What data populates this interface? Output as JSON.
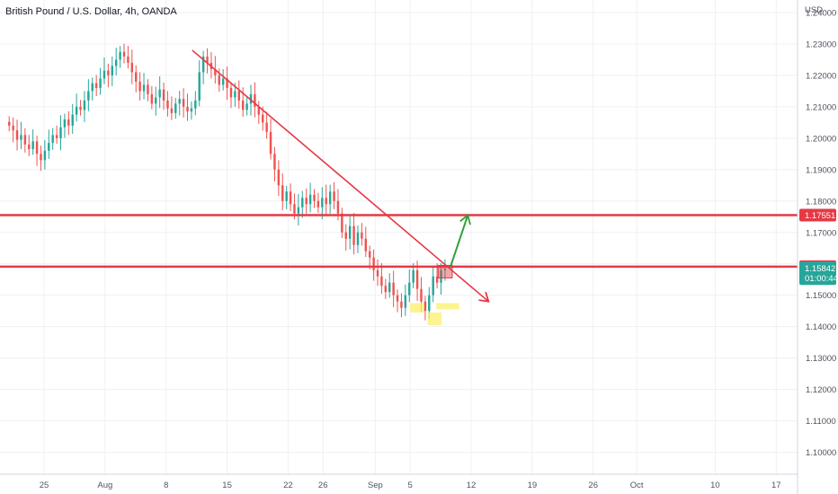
{
  "header": {
    "title": "British Pound / U.S. Dollar, 4h, OANDA",
    "currency": "USD"
  },
  "colors": {
    "up": "#26a69a",
    "down": "#ef5350",
    "wick": "#5d606b",
    "annotation_red": "#e53945",
    "arrow_green": "#31a03a",
    "highlight_yellow": "#f9f06b",
    "price_badge_green": "#26a69a",
    "grid": "#eef0f4"
  },
  "chart_data": {
    "type": "candlestick",
    "title": "British Pound / U.S. Dollar, 4h, OANDA",
    "ylim": [
      1.093,
      1.244
    ],
    "y_ticks": [
      "1.24000",
      "1.23000",
      "1.22000",
      "1.21000",
      "1.20000",
      "1.19000",
      "1.18000",
      "1.17000",
      "1.16000",
      "1.15000",
      "1.14000",
      "1.13000",
      "1.12000",
      "1.11000",
      "1.10000"
    ],
    "x_ticks": [
      {
        "label": "25",
        "date": "2022-07-25"
      },
      {
        "label": "Aug",
        "date": "2022-08-01"
      },
      {
        "label": "8",
        "date": "2022-08-08"
      },
      {
        "label": "15",
        "date": "2022-08-15"
      },
      {
        "label": "22",
        "date": "2022-08-22"
      },
      {
        "label": "26",
        "date": "2022-08-26"
      },
      {
        "label": "Sep",
        "date": "2022-09-01"
      },
      {
        "label": "5",
        "date": "2022-09-05"
      },
      {
        "label": "12",
        "date": "2022-09-12"
      },
      {
        "label": "19",
        "date": "2022-09-19"
      },
      {
        "label": "26",
        "date": "2022-09-26"
      },
      {
        "label": "Oct",
        "date": "2022-10-01"
      },
      {
        "label": "10",
        "date": "2022-10-10"
      },
      {
        "label": "17",
        "date": "2022-10-17"
      }
    ],
    "closes": [
      1.204,
      1.2025,
      1.1995,
      1.201,
      1.198,
      1.1965,
      1.199,
      1.195,
      1.193,
      1.196,
      1.1985,
      1.201,
      1.2,
      1.2035,
      1.206,
      1.204,
      1.2075,
      1.21,
      1.209,
      1.212,
      1.215,
      1.2175,
      1.216,
      1.219,
      1.2215,
      1.22,
      1.223,
      1.225,
      1.2275,
      1.226,
      1.224,
      1.221,
      1.218,
      1.215,
      1.217,
      1.214,
      1.211,
      1.213,
      1.2155,
      1.212,
      1.2095,
      1.208,
      1.211,
      1.2125,
      1.21,
      1.2085,
      1.2095,
      1.212,
      1.221,
      1.226,
      1.224,
      1.222,
      1.22,
      1.217,
      1.219,
      1.216,
      1.213,
      1.215,
      1.212,
      1.209,
      1.211,
      1.214,
      1.21,
      1.2075,
      1.205,
      1.202,
      1.195,
      1.19,
      1.185,
      1.18,
      1.183,
      1.179,
      1.176,
      1.178,
      1.181,
      1.179,
      1.182,
      1.18,
      1.178,
      1.181,
      1.179,
      1.183,
      1.18,
      1.176,
      1.17,
      1.168,
      1.172,
      1.166,
      1.17,
      1.168,
      1.164,
      1.162,
      1.158,
      1.156,
      1.153,
      1.151,
      1.154,
      1.15,
      1.148,
      1.146,
      1.15,
      1.154,
      1.158,
      1.152,
      1.148,
      1.145,
      1.15,
      1.156,
      1.154,
      1.158,
      1.1584
    ],
    "candle_date_range": [
      "2022-07-21",
      "2022-09-09"
    ],
    "last_price": "1.15842",
    "countdown": "01:00:44",
    "annotations": {
      "trendline": {
        "from": {
          "date": "2022-08-11",
          "price": 1.228
        },
        "to": {
          "date": "2022-09-14",
          "price": 1.148
        }
      },
      "horizontal_lines": [
        {
          "price": 1.17551,
          "label": "1.17551"
        },
        {
          "price": 1.15909,
          "label": "1.15909"
        }
      ],
      "up_arrow": {
        "from": {
          "date": "2022-09-09",
          "price": 1.159
        },
        "to": {
          "date": "2022-09-11",
          "price": 1.1755
        }
      },
      "breakout_box": {
        "from": {
          "date": "2022-09-08",
          "price": 1.1595
        },
        "to": {
          "date": "2022-09-09",
          "price": 1.1555
        }
      },
      "low_highlights": [
        {
          "from": {
            "date": "2022-09-05",
            "price": 1.1475
          },
          "to": {
            "date": "2022-09-06",
            "price": 1.1445
          }
        },
        {
          "from": {
            "date": "2022-09-07",
            "price": 1.1445
          },
          "to": {
            "date": "2022-09-08",
            "price": 1.1405
          }
        },
        {
          "from": {
            "date": "2022-09-08",
            "price": 1.1475
          },
          "to": {
            "date": "2022-09-10",
            "price": 1.1455
          }
        }
      ]
    },
    "grid": true
  }
}
